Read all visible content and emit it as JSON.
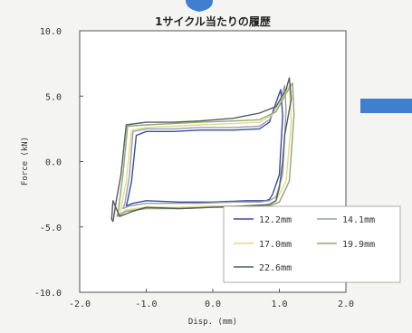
{
  "chart_data": {
    "type": "line",
    "title": "1サイクル当たりの履歴",
    "xlabel": "Disp.  (mm)",
    "ylabel": "Force  (kN)",
    "xlim": [
      -2.0,
      2.0
    ],
    "ylim": [
      -10.0,
      10.0
    ],
    "xticks": [
      "-2.0",
      "-1.0",
      "0.0",
      "1.0",
      "2.0"
    ],
    "yticks": [
      "10.0",
      "5.0",
      "0.0",
      "-5.0",
      "-10.0"
    ],
    "grid": false,
    "legend_position": "bottom-right",
    "colors": {
      "accent_blue": "#3f7fd0",
      "background": "#f4f4f2",
      "plot_background": "#ffffff"
    },
    "series": [
      {
        "name": "12.2mm",
        "color": "#3c4aa8",
        "x": [
          -1.28,
          -1.22,
          -1.15,
          -1.0,
          -0.6,
          -0.2,
          0.3,
          0.7,
          0.85,
          0.95,
          1.02,
          1.05,
          1.0,
          0.9,
          0.85,
          0.8,
          0.5,
          0.0,
          -0.5,
          -1.0,
          -1.2,
          -1.3,
          -1.28
        ],
        "y": [
          -3.0,
          -1.5,
          2.0,
          2.3,
          2.3,
          2.4,
          2.4,
          2.5,
          3.0,
          4.5,
          5.5,
          3.5,
          -1.0,
          -2.5,
          -2.9,
          -3.0,
          -3.0,
          -3.1,
          -3.1,
          -3.0,
          -3.2,
          -3.4,
          -3.0
        ]
      },
      {
        "name": "14.1mm",
        "color": "#9aa0a8",
        "x": [
          -1.32,
          -1.25,
          -1.2,
          -1.0,
          -0.6,
          -0.2,
          0.3,
          0.7,
          0.85,
          1.0,
          1.08,
          1.1,
          1.05,
          0.95,
          0.85,
          0.7,
          0.3,
          -0.2,
          -0.6,
          -1.0,
          -1.25,
          -1.35,
          -1.32
        ],
        "y": [
          -3.2,
          -1.0,
          2.3,
          2.5,
          2.5,
          2.6,
          2.6,
          2.7,
          3.2,
          4.5,
          5.8,
          4.0,
          -1.0,
          -2.7,
          -3.0,
          -3.1,
          -3.1,
          -3.2,
          -3.2,
          -3.2,
          -3.4,
          -3.6,
          -3.2
        ]
      },
      {
        "name": "17.0mm",
        "color": "#e6d98a",
        "x": [
          -1.38,
          -1.3,
          -1.22,
          -1.0,
          -0.6,
          -0.2,
          0.3,
          0.7,
          0.9,
          1.05,
          1.15,
          1.18,
          1.1,
          0.95,
          0.8,
          0.4,
          0.0,
          -0.5,
          -1.0,
          -1.3,
          -1.4,
          -1.38
        ],
        "y": [
          -3.6,
          -1.5,
          2.4,
          2.6,
          2.7,
          2.8,
          2.9,
          3.0,
          3.6,
          5.0,
          5.8,
          3.0,
          -1.5,
          -3.0,
          -3.3,
          -3.4,
          -3.4,
          -3.5,
          -3.5,
          -3.7,
          -4.0,
          -3.6
        ]
      },
      {
        "name": "19.9mm",
        "color": "#8fa878",
        "x": [
          -1.42,
          -1.35,
          -1.28,
          -1.0,
          -0.6,
          -0.2,
          0.3,
          0.7,
          0.95,
          1.1,
          1.2,
          1.22,
          1.15,
          1.0,
          0.85,
          0.5,
          0.0,
          -0.5,
          -1.0,
          -1.3,
          -1.44,
          -1.42
        ],
        "y": [
          -3.8,
          -1.0,
          2.7,
          2.8,
          2.9,
          3.0,
          3.1,
          3.2,
          3.8,
          5.2,
          6.0,
          3.5,
          -1.5,
          -3.1,
          -3.4,
          -3.5,
          -3.5,
          -3.6,
          -3.6,
          -3.8,
          -4.2,
          -3.8
        ]
      },
      {
        "name": "22.6mm",
        "color": "#555a60",
        "x": [
          -1.5,
          -1.45,
          -1.38,
          -1.3,
          -1.0,
          -0.6,
          -0.2,
          0.3,
          0.7,
          0.95,
          1.1,
          1.15,
          1.18,
          1.08,
          1.05,
          1.0,
          0.95,
          0.85,
          0.5,
          0.0,
          -0.5,
          -1.0,
          -1.2,
          -1.4,
          -1.5,
          -1.52,
          -1.5
        ],
        "y": [
          -4.6,
          -3.0,
          -1.0,
          2.8,
          3.0,
          3.0,
          3.1,
          3.3,
          3.7,
          4.2,
          5.5,
          6.4,
          4.8,
          2.0,
          0.0,
          -2.0,
          -3.0,
          -3.3,
          -3.4,
          -3.5,
          -3.6,
          -3.5,
          -3.8,
          -4.2,
          -3.0,
          -4.4,
          -4.6
        ]
      }
    ]
  }
}
